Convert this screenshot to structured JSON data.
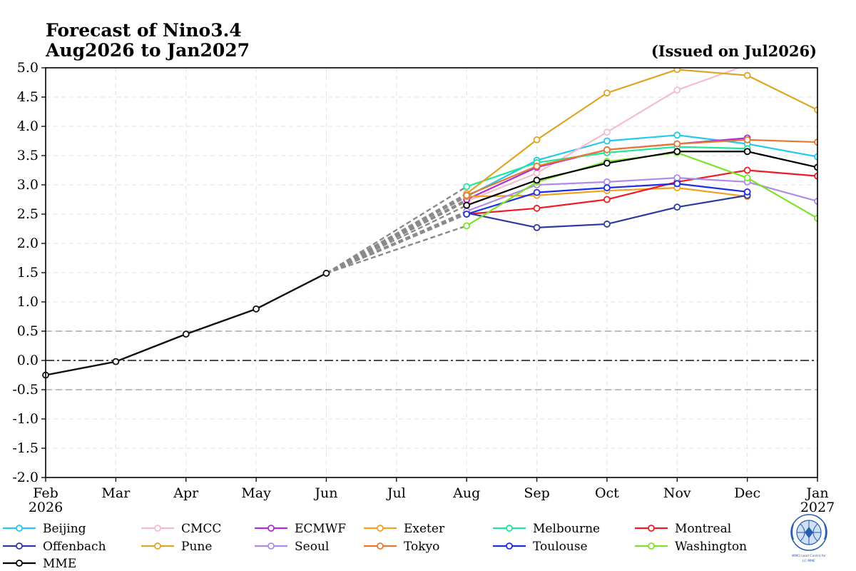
{
  "title_lines": [
    "Forecast of Nino3.4",
    "Aug2026 to Jan2027"
  ],
  "issued": "(Issued on Jul2026)",
  "logo_text": [
    "WMO Lead Centre for",
    "LC-MME"
  ],
  "chart_data": {
    "type": "line",
    "title": "Forecast of Nino3.4 Aug2026 to Jan2027",
    "ylim": [
      -2.0,
      5.0
    ],
    "y_ticks": [
      "5.0",
      "4.5",
      "4.0",
      "3.5",
      "3.0",
      "2.5",
      "2.0",
      "1.5",
      "1.0",
      "0.5",
      "0.0",
      "-0.5",
      "-1.0",
      "-1.5",
      "-2.0"
    ],
    "x_ticks": [
      {
        "label": "Feb",
        "sub": "2026"
      },
      {
        "label": "Mar",
        "sub": ""
      },
      {
        "label": "Apr",
        "sub": ""
      },
      {
        "label": "May",
        "sub": ""
      },
      {
        "label": "Jun",
        "sub": ""
      },
      {
        "label": "Jul",
        "sub": ""
      },
      {
        "label": "Aug",
        "sub": ""
      },
      {
        "label": "Sep",
        "sub": ""
      },
      {
        "label": "Oct",
        "sub": ""
      },
      {
        "label": "Nov",
        "sub": ""
      },
      {
        "label": "Dec",
        "sub": ""
      },
      {
        "label": "Jan",
        "sub": "2027"
      }
    ],
    "grid": true,
    "reference_lines": [
      0.5,
      0.0,
      -0.5
    ],
    "observed": {
      "months": [
        "Feb",
        "Mar",
        "Apr",
        "May",
        "Jun"
      ],
      "values": [
        -0.25,
        -0.02,
        0.45,
        0.88,
        1.49
      ]
    },
    "forecast_months": [
      "Aug",
      "Sep",
      "Oct",
      "Nov",
      "Dec",
      "Jan"
    ],
    "series": [
      {
        "name": "Beijing",
        "color": "#22c8ee",
        "values": [
          2.8,
          3.42,
          3.75,
          3.85,
          3.7,
          3.48
        ]
      },
      {
        "name": "CMCC",
        "color": "#f6bcc8",
        "values": [
          2.72,
          3.2,
          3.9,
          4.62,
          5.05,
          null
        ]
      },
      {
        "name": "ECMWF",
        "color": "#b02cd8",
        "values": [
          2.75,
          3.3,
          3.6,
          3.7,
          3.8,
          null
        ]
      },
      {
        "name": "Exeter",
        "color": "#f2a020",
        "values": [
          2.8,
          2.82,
          2.9,
          2.95,
          2.8,
          null
        ]
      },
      {
        "name": "Melbourne",
        "color": "#1ee89a",
        "values": [
          2.97,
          3.38,
          3.55,
          3.65,
          3.62,
          null
        ]
      },
      {
        "name": "Montreal",
        "color": "#ee1c24",
        "values": [
          2.5,
          2.6,
          2.75,
          3.05,
          3.25,
          3.15
        ]
      },
      {
        "name": "Offenbach",
        "color": "#2a3a9e",
        "values": [
          2.52,
          2.27,
          2.33,
          2.62,
          2.82,
          null
        ]
      },
      {
        "name": "Pune",
        "color": "#e0a424",
        "values": [
          2.85,
          3.77,
          4.57,
          4.97,
          4.87,
          4.28
        ]
      },
      {
        "name": "Seoul",
        "color": "#b08ae8",
        "values": [
          2.55,
          3.0,
          3.05,
          3.12,
          3.05,
          2.72
        ]
      },
      {
        "name": "Tokyo",
        "color": "#e77830",
        "values": [
          2.82,
          3.32,
          3.6,
          3.7,
          3.77,
          3.73
        ]
      },
      {
        "name": "Toulouse",
        "color": "#1c2ee6",
        "values": [
          2.5,
          2.87,
          2.95,
          3.02,
          2.88,
          null
        ]
      },
      {
        "name": "Washington",
        "color": "#7ae428",
        "values": [
          2.3,
          3.05,
          3.4,
          3.55,
          3.12,
          2.43
        ]
      },
      {
        "name": "MME",
        "color": "#000000",
        "values": [
          2.65,
          3.08,
          3.37,
          3.57,
          3.57,
          3.3
        ]
      }
    ],
    "legend": {
      "placement": "bottom",
      "rows": [
        [
          "Beijing",
          "CMCC",
          "ECMWF",
          "Exeter",
          "Melbourne",
          "Montreal"
        ],
        [
          "Offenbach",
          "Pune",
          "Seoul",
          "Tokyo",
          "Toulouse",
          "Washington"
        ],
        [
          "MME"
        ]
      ]
    }
  }
}
